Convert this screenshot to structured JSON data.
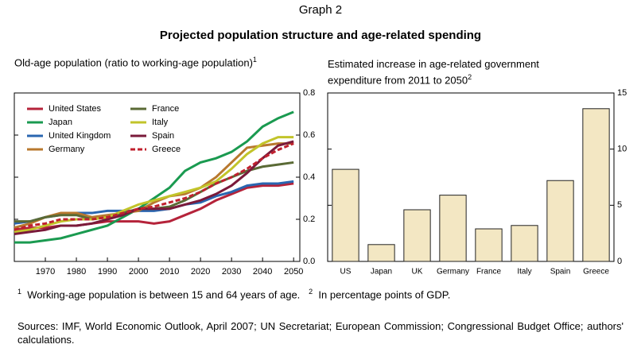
{
  "header": {
    "label": "Graph 2",
    "title": "Projected population structure and age-related spending"
  },
  "chart_data": [
    {
      "type": "line",
      "title": "Old-age population (ratio to working-age population)",
      "title_note": "1",
      "x": [
        1960,
        1965,
        1970,
        1975,
        1980,
        1985,
        1990,
        1995,
        2000,
        2005,
        2010,
        2015,
        2020,
        2025,
        2030,
        2035,
        2040,
        2045,
        2050
      ],
      "xlim": [
        1960,
        2052
      ],
      "xticks": [
        1970,
        1980,
        1990,
        2000,
        2010,
        2020,
        2030,
        2040,
        2050
      ],
      "ylim": [
        0,
        0.8
      ],
      "yticks": [
        {
          "value": 0,
          "label": "0.0"
        },
        0.2,
        0.4,
        0.6,
        0.8
      ],
      "legend": "upper left",
      "series": [
        {
          "name": "United States",
          "color": "#b5233a",
          "values": [
            0.15,
            0.16,
            0.16,
            0.17,
            0.17,
            0.18,
            0.19,
            0.19,
            0.19,
            0.18,
            0.19,
            0.22,
            0.25,
            0.29,
            0.32,
            0.35,
            0.36,
            0.36,
            0.37
          ]
        },
        {
          "name": "Japan",
          "color": "#1a9a50",
          "values": [
            0.09,
            0.09,
            0.1,
            0.11,
            0.13,
            0.15,
            0.17,
            0.21,
            0.25,
            0.3,
            0.35,
            0.43,
            0.47,
            0.49,
            0.52,
            0.57,
            0.64,
            0.68,
            0.71
          ]
        },
        {
          "name": "United Kingdom",
          "color": "#2a66b0",
          "values": [
            0.18,
            0.19,
            0.21,
            0.22,
            0.23,
            0.23,
            0.24,
            0.24,
            0.24,
            0.24,
            0.25,
            0.27,
            0.28,
            0.31,
            0.33,
            0.36,
            0.37,
            0.37,
            0.38
          ]
        },
        {
          "name": "Germany",
          "color": "#b8782e",
          "values": [
            0.16,
            0.18,
            0.21,
            0.23,
            0.23,
            0.21,
            0.22,
            0.23,
            0.24,
            0.28,
            0.31,
            0.32,
            0.35,
            0.4,
            0.47,
            0.54,
            0.55,
            0.56,
            0.56
          ]
        },
        {
          "name": "France",
          "color": "#5a6a35",
          "values": [
            0.19,
            0.19,
            0.21,
            0.22,
            0.22,
            0.2,
            0.21,
            0.23,
            0.25,
            0.25,
            0.26,
            0.29,
            0.33,
            0.37,
            0.4,
            0.43,
            0.45,
            0.46,
            0.47
          ]
        },
        {
          "name": "Italy",
          "color": "#c2c42a",
          "values": [
            0.14,
            0.15,
            0.17,
            0.19,
            0.2,
            0.2,
            0.21,
            0.24,
            0.27,
            0.29,
            0.31,
            0.33,
            0.35,
            0.38,
            0.44,
            0.51,
            0.56,
            0.59,
            0.59
          ]
        },
        {
          "name": "Spain",
          "color": "#7a1a3a",
          "values": [
            0.13,
            0.14,
            0.15,
            0.17,
            0.17,
            0.18,
            0.2,
            0.22,
            0.25,
            0.25,
            0.25,
            0.27,
            0.29,
            0.32,
            0.36,
            0.42,
            0.49,
            0.55,
            0.57
          ]
        },
        {
          "name": "Greece",
          "color": "#c0202e",
          "dashed": true,
          "values": [
            0.15,
            0.17,
            0.18,
            0.2,
            0.2,
            0.2,
            0.21,
            0.23,
            0.25,
            0.26,
            0.28,
            0.3,
            0.33,
            0.37,
            0.4,
            0.44,
            0.49,
            0.53,
            0.56
          ]
        }
      ]
    },
    {
      "type": "bar",
      "title": "Estimated increase in age-related government expenditure from 2011 to 2050",
      "title_note": "2",
      "categories": [
        "US",
        "Japan",
        "UK",
        "Germany",
        "France",
        "Italy",
        "Spain",
        "Greece"
      ],
      "values": [
        8.2,
        1.5,
        4.6,
        5.9,
        2.9,
        3.2,
        7.2,
        13.6
      ],
      "color": "#f3e7c3",
      "ylim": [
        0,
        15
      ],
      "yticks": [
        0,
        5,
        10,
        15
      ]
    }
  ],
  "footnotes": [
    {
      "mark": "1",
      "text": "Working-age population is between 15 and 64 years of age."
    },
    {
      "mark": "2",
      "text": "In percentage points of GDP."
    }
  ],
  "sources": "Sources: IMF, World Economic Outlook, April 2007; UN Secretariat; European Commission; Congressional Budget Office; authors' calculations."
}
